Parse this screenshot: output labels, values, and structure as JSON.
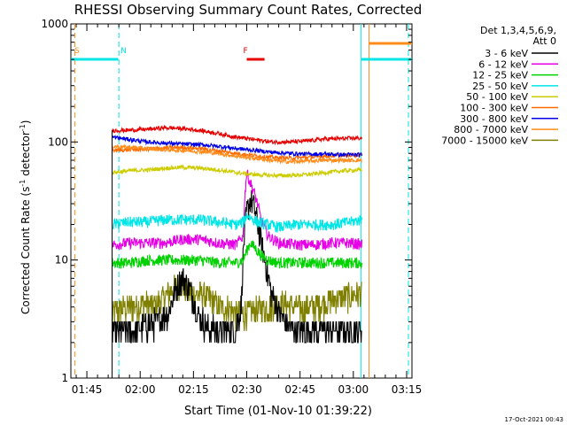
{
  "chart_data": {
    "type": "line",
    "title": "RHESSI Observing Summary Count Rates, Corrected",
    "xlabel": "Start Time (01-Nov-10 01:39:22)",
    "ylabel_main": "Corrected Count Rate (s",
    "ylabel_sup1": "-1",
    "ylabel_mid": " detector",
    "ylabel_sup2": "-1",
    "ylabel_end": ")",
    "yscale": "log",
    "ylim": [
      1,
      1000
    ],
    "xlim_minutes": [
      1.5,
      97.5
    ],
    "x_ticks": [
      {
        "m": 6,
        "label": "01:45"
      },
      {
        "m": 21,
        "label": "02:00"
      },
      {
        "m": 36,
        "label": "02:15"
      },
      {
        "m": 51,
        "label": "02:30"
      },
      {
        "m": 66,
        "label": "02:45"
      },
      {
        "m": 81,
        "label": "03:00"
      },
      {
        "m": 96,
        "label": "03:15"
      }
    ],
    "y_ticks": [
      {
        "v": 1,
        "label": "1"
      },
      {
        "v": 10,
        "label": "10"
      },
      {
        "v": 100,
        "label": "100"
      },
      {
        "v": 1000,
        "label": "1000"
      }
    ],
    "legend_title_1": "Det 1,3,4,5,6,9,",
    "legend_title_2": "Att 0",
    "legend_position": "right",
    "series": [
      {
        "name": "3 - 6 keV",
        "color": "#000000",
        "x": [
          13.1,
          14,
          17,
          20,
          23,
          26,
          29,
          31,
          33,
          35,
          37,
          40,
          43,
          46,
          48,
          49.5,
          51,
          52,
          53,
          54,
          55,
          56,
          57,
          58,
          60,
          63,
          66,
          70,
          74,
          78,
          81,
          83.5
        ],
        "y": [
          2.5,
          2.4,
          2.5,
          2.5,
          2.8,
          3.0,
          3.5,
          5.5,
          7.0,
          5.5,
          3.5,
          2.6,
          2.5,
          2.5,
          2.6,
          4.0,
          25,
          32,
          28,
          20,
          14,
          10,
          7,
          5,
          3.5,
          2.6,
          2.5,
          2.5,
          2.5,
          2.5,
          2.5,
          2.5
        ]
      },
      {
        "name": "6 - 12 keV",
        "color": "#e600e6",
        "x": [
          13.1,
          18,
          23,
          28,
          33,
          38,
          43,
          48,
          50,
          51,
          52,
          53,
          54,
          55,
          57,
          60,
          65,
          70,
          75,
          80,
          83.5
        ],
        "y": [
          13.5,
          14,
          14,
          14,
          15,
          15,
          14,
          13.5,
          16,
          55,
          45,
          38,
          30,
          22,
          16,
          14,
          13.5,
          13.5,
          14,
          14,
          13.5
        ]
      },
      {
        "name": "12 - 25 keV",
        "color": "#00d200",
        "x": [
          13.1,
          18,
          23,
          28,
          33,
          38,
          43,
          48,
          50,
          51,
          52,
          53,
          54,
          55,
          57,
          60,
          65,
          70,
          75,
          80,
          83.5
        ],
        "y": [
          9.5,
          9.5,
          10,
          10,
          10,
          10,
          9.5,
          9.5,
          10,
          12,
          14,
          13,
          12,
          11,
          10,
          9.5,
          9.5,
          9.5,
          9.5,
          9.5,
          9.5
        ]
      },
      {
        "name": "25 - 50 keV",
        "color": "#00e6e6",
        "x": [
          13.1,
          18,
          23,
          28,
          33,
          38,
          43,
          48,
          50,
          51,
          52,
          54,
          57,
          60,
          65,
          70,
          75,
          80,
          83.5
        ],
        "y": [
          20,
          21,
          21,
          22,
          22,
          22,
          21,
          20,
          21,
          24,
          23,
          21,
          20,
          19,
          20,
          20,
          20,
          21,
          22
        ]
      },
      {
        "name": "50 - 100 keV",
        "color": "#cccc00",
        "x": [
          13.1,
          18,
          23,
          28,
          33,
          38,
          43,
          48,
          53,
          58,
          63,
          68,
          73,
          78,
          83.5
        ],
        "y": [
          55,
          57,
          58,
          60,
          61,
          60,
          58,
          55,
          53,
          52,
          52,
          53,
          55,
          57,
          58
        ]
      },
      {
        "name": "100 - 300 keV",
        "color": "#ff6a00",
        "x": [
          13.1,
          18,
          23,
          28,
          33,
          38,
          43,
          48,
          53,
          58,
          63,
          68,
          73,
          78,
          83.5
        ],
        "y": [
          85,
          86,
          87,
          89,
          90,
          88,
          84,
          80,
          77,
          74,
          73,
          74,
          76,
          77,
          78
        ]
      },
      {
        "name": "300 - 800 keV",
        "color": "#0000e6",
        "x": [
          13.1,
          18,
          23,
          28,
          33,
          38,
          43,
          48,
          53,
          58,
          63,
          68,
          73,
          78,
          83.5
        ],
        "y": [
          110,
          105,
          100,
          98,
          96,
          95,
          92,
          88,
          85,
          82,
          80,
          79,
          79,
          78,
          78
        ]
      },
      {
        "name": "800 - 7000 keV",
        "color": "#ff8c1a",
        "x": [
          13.1,
          18,
          23,
          28,
          33,
          38,
          43,
          48,
          53,
          58,
          63,
          68,
          73,
          78,
          83.5
        ],
        "y": [
          92,
          90,
          88,
          86,
          85,
          83,
          80,
          76,
          73,
          70,
          68,
          69,
          70,
          70,
          70
        ]
      },
      {
        "name": "7000 - 15000 keV",
        "color": "#808000",
        "x": [
          13.1,
          16,
          19,
          22,
          25,
          28,
          30,
          32,
          34,
          36,
          38,
          40,
          43,
          46,
          48,
          50,
          52,
          55,
          58,
          61,
          64,
          67,
          70,
          73,
          76,
          79,
          81,
          83.5
        ],
        "y": [
          3.5,
          3.8,
          4.0,
          4.2,
          4.0,
          4.8,
          5.5,
          6.0,
          5.5,
          5.0,
          5.0,
          4.8,
          4.0,
          3.8,
          3.5,
          3.5,
          3.6,
          3.8,
          4.0,
          4.2,
          4.0,
          3.8,
          4.0,
          4.3,
          4.6,
          4.8,
          5.0,
          5.2
        ]
      }
    ],
    "red_series_name": "100 - 300 keV (red trace)",
    "red_trace": {
      "x": [
        13.1,
        18,
        23,
        28,
        33,
        38,
        43,
        48,
        53,
        58,
        63,
        68,
        73,
        78,
        83.5
      ],
      "y": [
        125,
        126,
        128,
        132,
        130,
        125,
        118,
        110,
        105,
        100,
        100,
        102,
        106,
        107,
        108
      ]
    },
    "annotations": [
      {
        "text": "S",
        "m": 2.5,
        "color": "#ff8c1a"
      },
      {
        "text": "N",
        "m": 15.5,
        "color": "#00e6e6"
      },
      {
        "text": "F",
        "m": 50.0,
        "color": "#e60000"
      }
    ],
    "flag_bars": [
      {
        "name": "attenuator-flag",
        "color": "#00e6e6",
        "segments": [
          [
            1.5,
            14.8
          ],
          [
            83.2,
            97.5
          ]
        ],
        "level": 0.9
      },
      {
        "name": "saa-flag",
        "color": "#ff8c1a",
        "segments": [
          [
            85.4,
            97.5
          ]
        ],
        "level": 0.945
      },
      {
        "name": "flare-flag",
        "color": "#e60000",
        "segments": [
          [
            51.0,
            56.0
          ]
        ],
        "level": 0.9
      }
    ],
    "vlines": [
      {
        "m": 2.6,
        "color": "#ff8c1a",
        "dash": true
      },
      {
        "m": 15.0,
        "color": "#00e6e6",
        "dash": true
      },
      {
        "m": 83.2,
        "color": "#00e6e6",
        "dash": false
      },
      {
        "m": 85.4,
        "color": "#ff8c1a",
        "dash": false
      },
      {
        "m": 96.5,
        "color": "#00e6e6",
        "dash": true
      }
    ],
    "timestamp": "17-Oct-2021 00:43"
  }
}
